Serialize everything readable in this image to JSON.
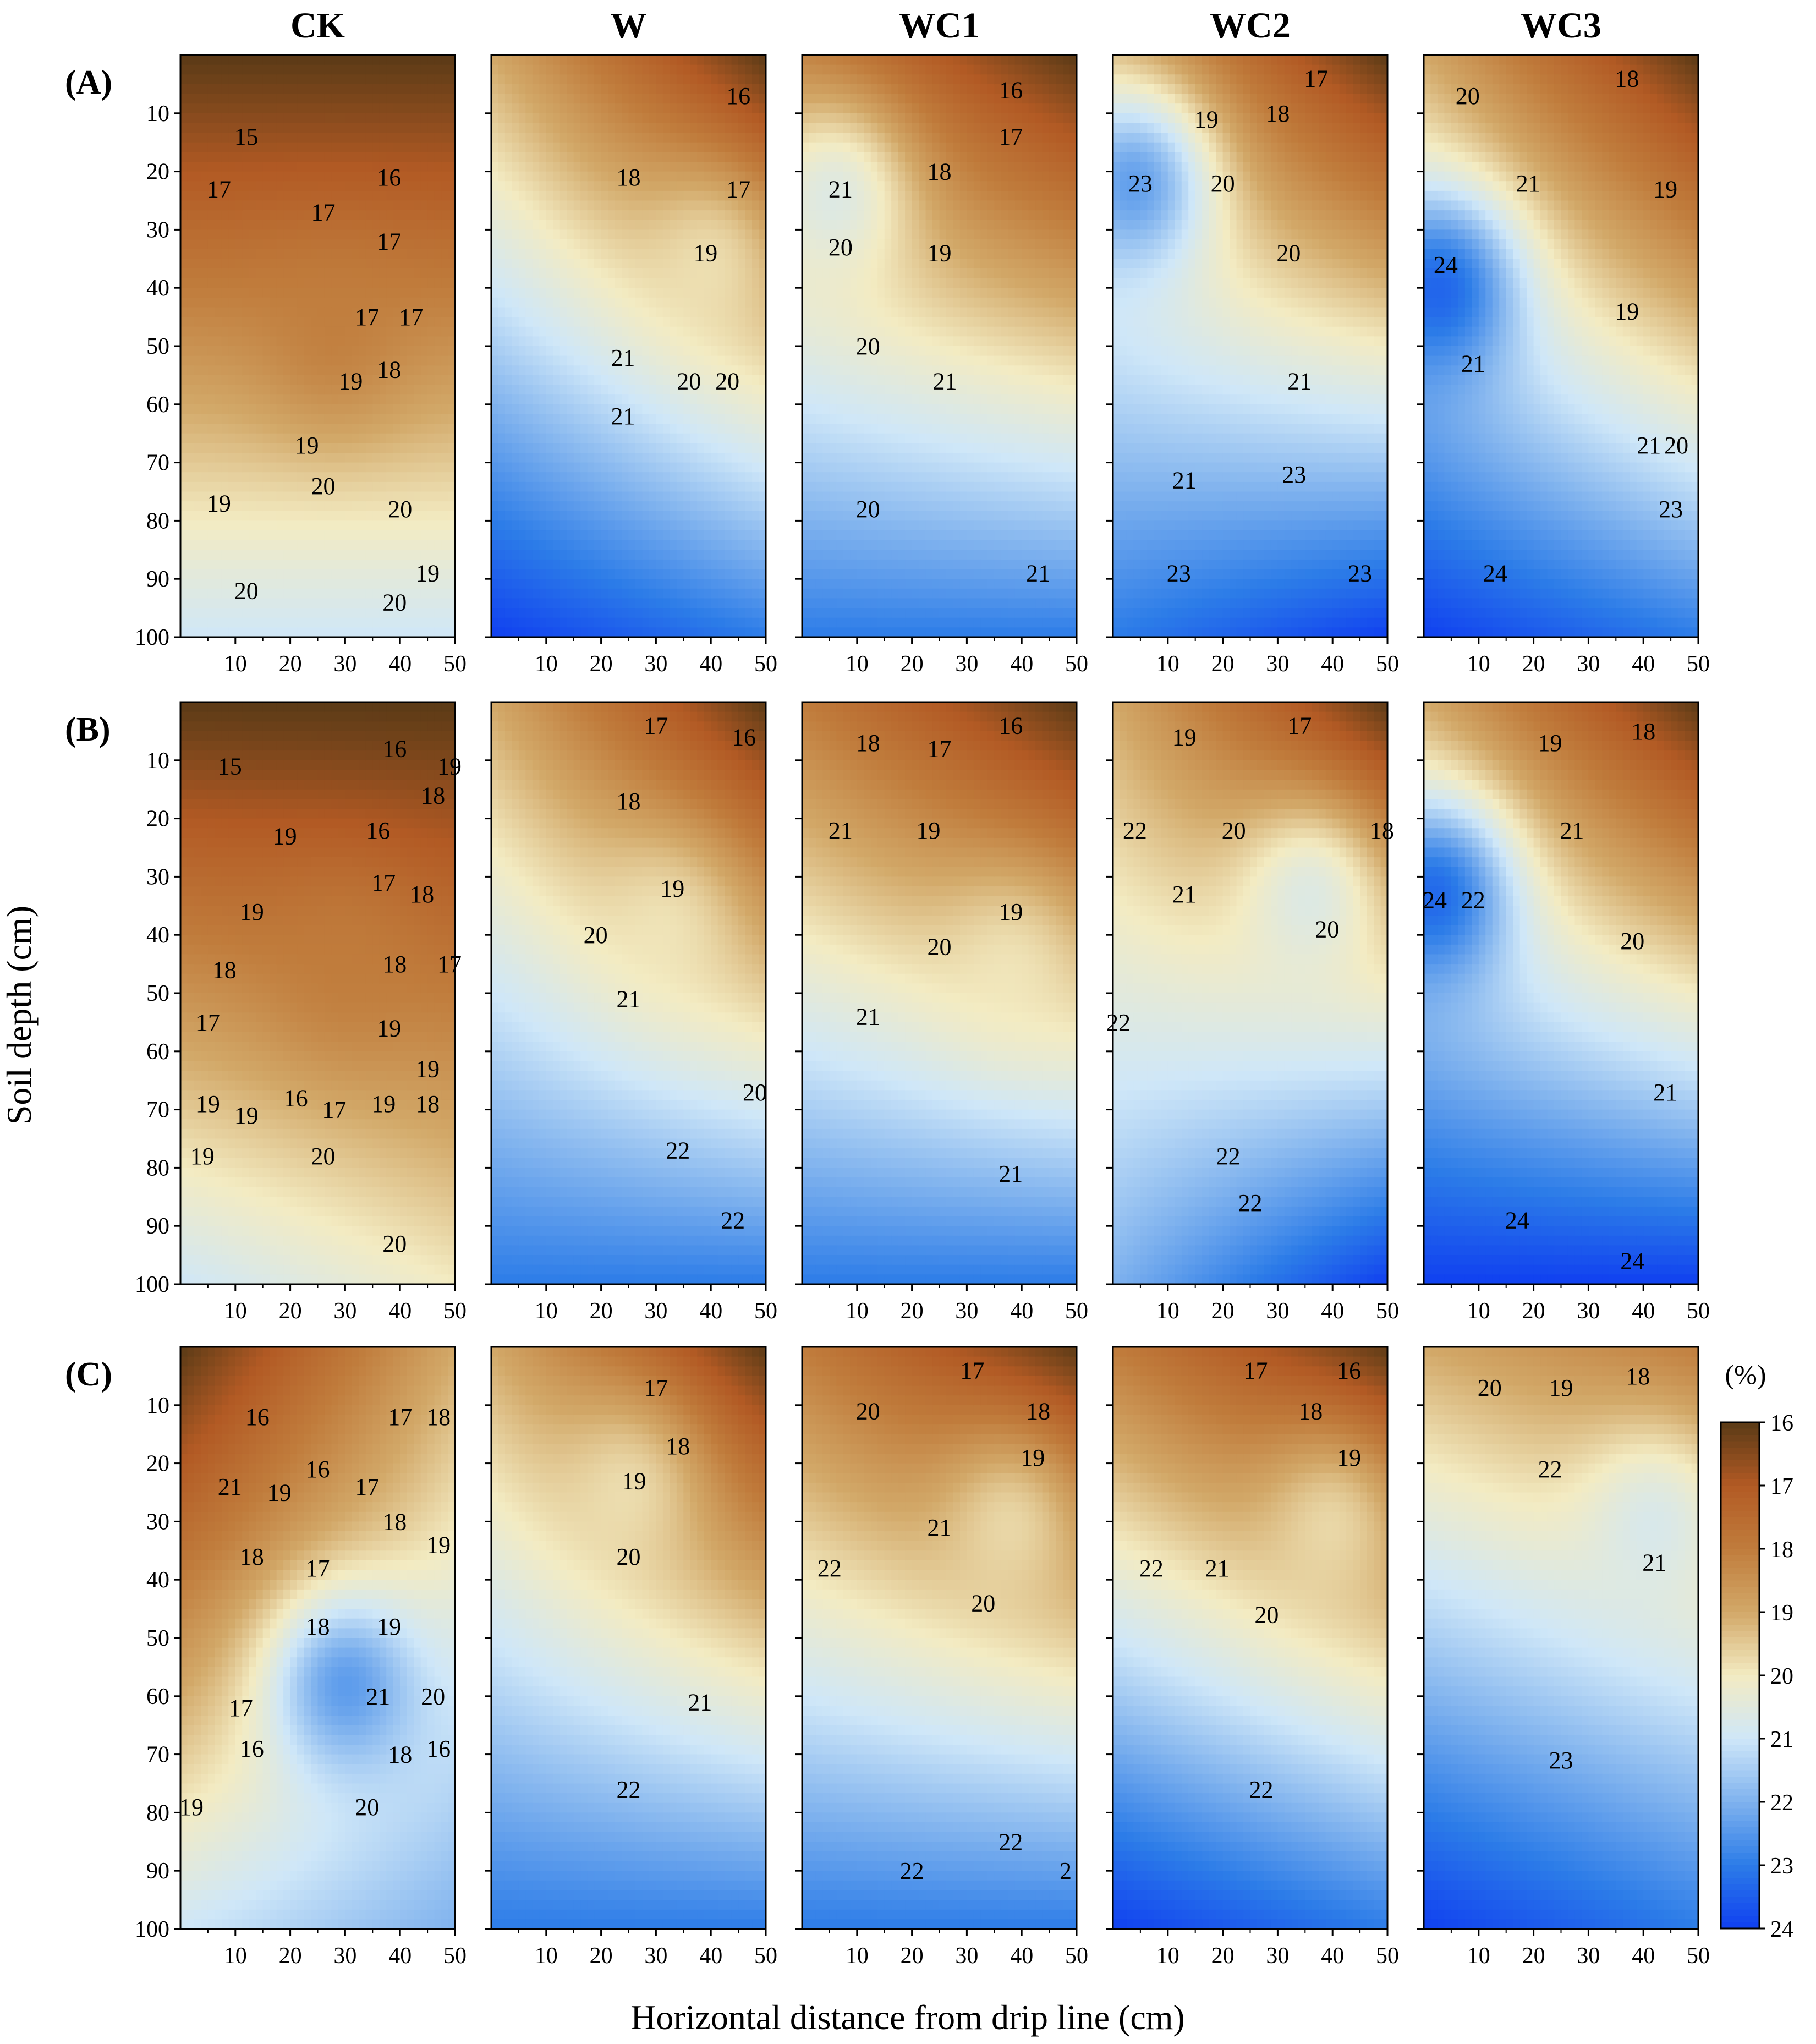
{
  "chart_data": {
    "type": "heatmap",
    "treatments": [
      "CK",
      "W",
      "WC1",
      "WC2",
      "WC3"
    ],
    "rows": [
      "(A)",
      "(B)",
      "(C)"
    ],
    "xlabel": "Horizontal distance from drip line (cm)",
    "ylabel": "Soil depth (cm)",
    "x_ticks": [
      10,
      20,
      30,
      40,
      50
    ],
    "y_ticks": [
      10,
      20,
      30,
      40,
      50,
      60,
      70,
      80,
      90,
      100
    ],
    "xlim": [
      0,
      50
    ],
    "ylim": [
      100,
      0
    ],
    "colorbar": {
      "unit": "(%)",
      "ticks": [
        16,
        17,
        18,
        19,
        20,
        21,
        22,
        23,
        24
      ],
      "range": [
        16,
        24
      ],
      "colors": [
        "#5a3a16",
        "#b25a24",
        "#c07c3c",
        "#d2a868",
        "#f3ebc2",
        "#cfe7f8",
        "#7fb2ee",
        "#2c7ce8",
        "#1040f0"
      ]
    },
    "panels": [
      [
        {
          "tl": 16,
          "tr": 16,
          "bl": 21,
          "br": 21,
          "w": 18,
          "wx": 28,
          "wy": 48,
          "labels": [
            [
              "15",
              12,
              14
            ],
            [
              "16",
              38,
              21
            ],
            [
              "17",
              7,
              23
            ],
            [
              "17",
              26,
              27
            ],
            [
              "17",
              38,
              32
            ],
            [
              "17",
              34,
              45
            ],
            [
              "17",
              42,
              45
            ],
            [
              "18",
              38,
              54
            ],
            [
              "19",
              31,
              56
            ],
            [
              "19",
              23,
              67
            ],
            [
              "20",
              26,
              74
            ],
            [
              "20",
              40,
              78
            ],
            [
              "19",
              7,
              77
            ],
            [
              "19",
              45,
              89
            ],
            [
              "20",
              12,
              92
            ],
            [
              "20",
              39,
              94
            ]
          ]
        },
        {
          "tl": 19,
          "tr": 16,
          "bl": 24,
          "br": 23,
          "w": 20,
          "wx": 40,
          "wy": 35,
          "labels": [
            [
              "16",
              45,
              7
            ],
            [
              "18",
              25,
              21
            ],
            [
              "17",
              45,
              23
            ],
            [
              "19",
              39,
              34
            ],
            [
              "21",
              24,
              52
            ],
            [
              "20",
              36,
              56
            ],
            [
              "20",
              43,
              56
            ],
            [
              "21",
              24,
              62
            ]
          ]
        },
        {
          "tl": 18,
          "tr": 16,
          "bl": 23,
          "br": 23,
          "w": 21,
          "wx": 6,
          "wy": 24,
          "labels": [
            [
              "16",
              38,
              6
            ],
            [
              "17",
              38,
              14
            ],
            [
              "18",
              25,
              20
            ],
            [
              "21",
              7,
              23
            ],
            [
              "20",
              7,
              33
            ],
            [
              "19",
              25,
              34
            ],
            [
              "20",
              12,
              50
            ],
            [
              "21",
              26,
              56
            ],
            [
              "20",
              12,
              78
            ],
            [
              "21",
              43,
              89
            ]
          ]
        },
        {
          "tl": 19,
          "tr": 16,
          "bl": 23,
          "br": 24,
          "w": 23,
          "wx": 4,
          "wy": 22,
          "labels": [
            [
              "17",
              37,
              4
            ],
            [
              "19",
              17,
              11
            ],
            [
              "18",
              30,
              10
            ],
            [
              "23",
              5,
              22
            ],
            [
              "20",
              20,
              22
            ],
            [
              "20",
              32,
              34
            ],
            [
              "21",
              34,
              56
            ],
            [
              "21",
              13,
              73
            ],
            [
              "23",
              33,
              72
            ],
            [
              "23",
              12,
              89
            ],
            [
              "23",
              45,
              89
            ]
          ]
        },
        {
          "tl": 19,
          "tr": 16,
          "bl": 24,
          "br": 23,
          "w": 24,
          "wx": 3,
          "wy": 40,
          "labels": [
            [
              "18",
              37,
              4
            ],
            [
              "20",
              8,
              7
            ],
            [
              "21",
              19,
              22
            ],
            [
              "19",
              44,
              23
            ],
            [
              "24",
              4,
              36
            ],
            [
              "19",
              37,
              44
            ],
            [
              "21",
              9,
              53
            ],
            [
              "21",
              41,
              67
            ],
            [
              "20",
              46,
              67
            ],
            [
              "23",
              45,
              78
            ],
            [
              "24",
              13,
              89
            ]
          ]
        }
      ],
      [
        {
          "tl": 16,
          "tr": 16,
          "bl": 21,
          "br": 20,
          "w": 18,
          "wx": 30,
          "wy": 45,
          "labels": [
            [
              "15",
              9,
              11
            ],
            [
              "16",
              39,
              8
            ],
            [
              "19",
              49,
              11
            ],
            [
              "18",
              46,
              16
            ],
            [
              "19",
              19,
              23
            ],
            [
              "16",
              36,
              22
            ],
            [
              "17",
              37,
              31
            ],
            [
              "18",
              44,
              33
            ],
            [
              "19",
              13,
              36
            ],
            [
              "18",
              8,
              46
            ],
            [
              "18",
              39,
              45
            ],
            [
              "17",
              49,
              45
            ],
            [
              "17",
              5,
              55
            ],
            [
              "19",
              38,
              56
            ],
            [
              "19",
              45,
              63
            ],
            [
              "16",
              21,
              68
            ],
            [
              "19",
              37,
              69
            ],
            [
              "18",
              45,
              69
            ],
            [
              "17",
              28,
              70
            ],
            [
              "19",
              5,
              69
            ],
            [
              "19",
              12,
              71
            ],
            [
              "19",
              4,
              78
            ],
            [
              "20",
              26,
              78
            ],
            [
              "20",
              39,
              93
            ]
          ]
        },
        {
          "tl": 19,
          "tr": 16,
          "bl": 23,
          "br": 23,
          "w": 20,
          "wx": 32,
          "wy": 38,
          "labels": [
            [
              "17",
              30,
              4
            ],
            [
              "16",
              46,
              6
            ],
            [
              "18",
              25,
              17
            ],
            [
              "19",
              33,
              32
            ],
            [
              "20",
              19,
              40
            ],
            [
              "21",
              25,
              51
            ],
            [
              "20",
              48,
              67
            ],
            [
              "22",
              34,
              77
            ],
            [
              "22",
              44,
              89
            ]
          ]
        },
        {
          "tl": 18,
          "tr": 16,
          "bl": 23,
          "br": 23,
          "w": 20,
          "wx": 38,
          "wy": 45,
          "labels": [
            [
              "16",
              38,
              4
            ],
            [
              "18",
              12,
              7
            ],
            [
              "17",
              25,
              8
            ],
            [
              "21",
              7,
              22
            ],
            [
              "19",
              23,
              22
            ],
            [
              "19",
              38,
              36
            ],
            [
              "20",
              25,
              42
            ],
            [
              "21",
              12,
              54
            ],
            [
              "21",
              38,
              81
            ]
          ]
        },
        {
          "tl": 19,
          "tr": 16,
          "bl": 22,
          "br": 24,
          "w": 21,
          "wx": 36,
          "wy": 33,
          "labels": [
            [
              "17",
              34,
              4
            ],
            [
              "19",
              13,
              6
            ],
            [
              "20",
              22,
              22
            ],
            [
              "18",
              49,
              22
            ],
            [
              "22",
              4,
              22
            ],
            [
              "21",
              13,
              33
            ],
            [
              "20",
              39,
              39
            ],
            [
              "22",
              1,
              55
            ],
            [
              "22",
              21,
              78
            ],
            [
              "22",
              25,
              86
            ]
          ]
        },
        {
          "tl": 19,
          "tr": 16,
          "bl": 24,
          "br": 24,
          "w": 24,
          "wx": 2,
          "wy": 33,
          "labels": [
            [
              "19",
              23,
              7
            ],
            [
              "18",
              40,
              5
            ],
            [
              "21",
              27,
              22
            ],
            [
              "24",
              2,
              34
            ],
            [
              "22",
              9,
              34
            ],
            [
              "20",
              38,
              41
            ],
            [
              "21",
              44,
              67
            ],
            [
              "24",
              17,
              89
            ],
            [
              "24",
              38,
              96
            ]
          ]
        }
      ],
      [
        {
          "tl": 16,
          "tr": 19,
          "bl": 21,
          "br": 22,
          "w": 23,
          "wx": 30,
          "wy": 58,
          "labels": [
            [
              "16",
              14,
              12
            ],
            [
              "17",
              40,
              12
            ],
            [
              "18",
              47,
              12
            ],
            [
              "16",
              25,
              21
            ],
            [
              "21",
              9,
              24
            ],
            [
              "19",
              18,
              25
            ],
            [
              "17",
              34,
              24
            ],
            [
              "18",
              39,
              30
            ],
            [
              "19",
              47,
              34
            ],
            [
              "18",
              13,
              36
            ],
            [
              "17",
              25,
              38
            ],
            [
              "18",
              25,
              48
            ],
            [
              "19",
              38,
              48
            ],
            [
              "21",
              36,
              60
            ],
            [
              "20",
              46,
              60
            ],
            [
              "17",
              11,
              62
            ],
            [
              "16",
              13,
              69
            ],
            [
              "18",
              40,
              70
            ],
            [
              "16",
              47,
              69
            ],
            [
              "19",
              2,
              79
            ],
            [
              "20",
              34,
              79
            ]
          ]
        },
        {
          "tl": 19,
          "tr": 16,
          "bl": 23,
          "br": 23,
          "w": 20,
          "wx": 25,
          "wy": 24,
          "labels": [
            [
              "17",
              30,
              7
            ],
            [
              "18",
              34,
              17
            ],
            [
              "19",
              26,
              23
            ],
            [
              "20",
              25,
              36
            ],
            [
              "21",
              38,
              61
            ],
            [
              "22",
              25,
              76
            ]
          ]
        },
        {
          "tl": 18,
          "tr": 16,
          "bl": 23,
          "br": 23,
          "w": 20,
          "wx": 38,
          "wy": 30,
          "labels": [
            [
              "17",
              31,
              4
            ],
            [
              "20",
              12,
              11
            ],
            [
              "18",
              43,
              11
            ],
            [
              "19",
              42,
              19
            ],
            [
              "21",
              25,
              31
            ],
            [
              "22",
              5,
              38
            ],
            [
              "20",
              33,
              44
            ],
            [
              "22",
              38,
              85
            ],
            [
              "22",
              20,
              90
            ],
            [
              "2",
              48,
              90
            ]
          ]
        },
        {
          "tl": 18,
          "tr": 16,
          "bl": 24,
          "br": 23,
          "w": 20,
          "wx": 40,
          "wy": 30,
          "labels": [
            [
              "17",
              26,
              4
            ],
            [
              "16",
              43,
              4
            ],
            [
              "18",
              36,
              11
            ],
            [
              "19",
              43,
              19
            ],
            [
              "22",
              7,
              38
            ],
            [
              "21",
              19,
              38
            ],
            [
              "20",
              28,
              46
            ],
            [
              "22",
              27,
              76
            ]
          ]
        },
        {
          "tl": 19,
          "tr": 18,
          "bl": 24,
          "br": 23,
          "w": 21,
          "wx": 42,
          "wy": 30,
          "labels": [
            [
              "20",
              12,
              7
            ],
            [
              "19",
              25,
              7
            ],
            [
              "18",
              39,
              5
            ],
            [
              "22",
              23,
              21
            ],
            [
              "21",
              42,
              37
            ],
            [
              "23",
              25,
              71
            ]
          ]
        }
      ]
    ]
  }
}
